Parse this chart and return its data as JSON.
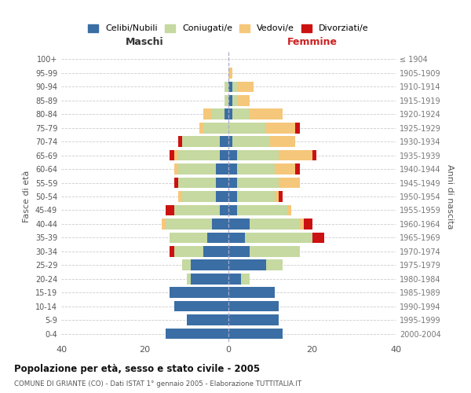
{
  "age_groups": [
    "0-4",
    "5-9",
    "10-14",
    "15-19",
    "20-24",
    "25-29",
    "30-34",
    "35-39",
    "40-44",
    "45-49",
    "50-54",
    "55-59",
    "60-64",
    "65-69",
    "70-74",
    "75-79",
    "80-84",
    "85-89",
    "90-94",
    "95-99",
    "100+"
  ],
  "birth_years": [
    "2000-2004",
    "1995-1999",
    "1990-1994",
    "1985-1989",
    "1980-1984",
    "1975-1979",
    "1970-1974",
    "1965-1969",
    "1960-1964",
    "1955-1959",
    "1950-1954",
    "1945-1949",
    "1940-1944",
    "1935-1939",
    "1930-1934",
    "1925-1929",
    "1920-1924",
    "1915-1919",
    "1910-1914",
    "1905-1909",
    "≤ 1904"
  ],
  "colors": {
    "celibi": "#3a6ea5",
    "coniugati": "#c5d9a0",
    "vedovi": "#f5c77a",
    "divorziati": "#cc1111"
  },
  "maschi": {
    "celibi": [
      15,
      10,
      13,
      14,
      9,
      9,
      6,
      5,
      4,
      2,
      3,
      3,
      3,
      2,
      2,
      0,
      1,
      0,
      0,
      0,
      0
    ],
    "coniugati": [
      0,
      0,
      0,
      0,
      1,
      2,
      7,
      9,
      11,
      11,
      8,
      9,
      9,
      10,
      9,
      6,
      3,
      1,
      1,
      0,
      0
    ],
    "vedovi": [
      0,
      0,
      0,
      0,
      0,
      0,
      0,
      0,
      1,
      0,
      1,
      0,
      1,
      1,
      0,
      1,
      2,
      0,
      0,
      0,
      0
    ],
    "divorziati": [
      0,
      0,
      0,
      0,
      0,
      0,
      1,
      0,
      0,
      2,
      0,
      1,
      0,
      1,
      1,
      0,
      0,
      0,
      0,
      0,
      0
    ]
  },
  "femmine": {
    "celibi": [
      13,
      12,
      12,
      11,
      3,
      9,
      5,
      4,
      5,
      2,
      2,
      2,
      2,
      2,
      1,
      0,
      1,
      1,
      1,
      0,
      0
    ],
    "coniugati": [
      0,
      0,
      0,
      0,
      2,
      4,
      12,
      16,
      12,
      12,
      9,
      10,
      9,
      10,
      9,
      9,
      4,
      1,
      1,
      0,
      0
    ],
    "vedovi": [
      0,
      0,
      0,
      0,
      0,
      0,
      0,
      0,
      1,
      1,
      1,
      5,
      5,
      8,
      6,
      7,
      8,
      3,
      4,
      1,
      0
    ],
    "divorziati": [
      0,
      0,
      0,
      0,
      0,
      0,
      0,
      3,
      2,
      0,
      1,
      0,
      1,
      1,
      0,
      1,
      0,
      0,
      0,
      0,
      0
    ]
  },
  "title": "Popolazione per età, sesso e stato civile - 2005",
  "subtitle": "COMUNE DI GRIANTE (CO) - Dati ISTAT 1° gennaio 2005 - Elaborazione TUTTITALIA.IT",
  "xlabel_left": "Maschi",
  "xlabel_right": "Femmine",
  "ylabel_left": "Fasce di età",
  "ylabel_right": "Anni di nascita",
  "xlim": 40,
  "legend_labels": [
    "Celibi/Nubili",
    "Coniugati/e",
    "Vedovi/e",
    "Divorziati/e"
  ],
  "background_color": "#ffffff",
  "grid_color": "#cccccc"
}
